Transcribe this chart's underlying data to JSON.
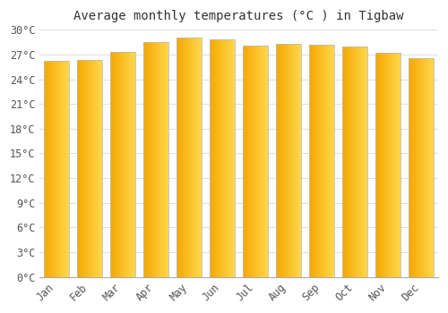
{
  "title": "Average monthly temperatures (°C ) in Tigbaw",
  "months": [
    "Jan",
    "Feb",
    "Mar",
    "Apr",
    "May",
    "Jun",
    "Jul",
    "Aug",
    "Sep",
    "Oct",
    "Nov",
    "Dec"
  ],
  "values": [
    26.2,
    26.3,
    27.3,
    28.5,
    29.0,
    28.8,
    28.1,
    28.3,
    28.2,
    28.0,
    27.2,
    26.5
  ],
  "bar_color_left": "#F5A800",
  "bar_color_right": "#FFD84D",
  "bar_edge_color": "#BBBBBB",
  "background_color": "#FFFFFF",
  "plot_bg_color": "#FFFFFF",
  "grid_color": "#DDDDDD",
  "ylim": [
    0,
    30
  ],
  "ytick_step": 3,
  "title_fontsize": 10,
  "tick_fontsize": 8.5,
  "font_family": "monospace",
  "bar_width": 0.75
}
